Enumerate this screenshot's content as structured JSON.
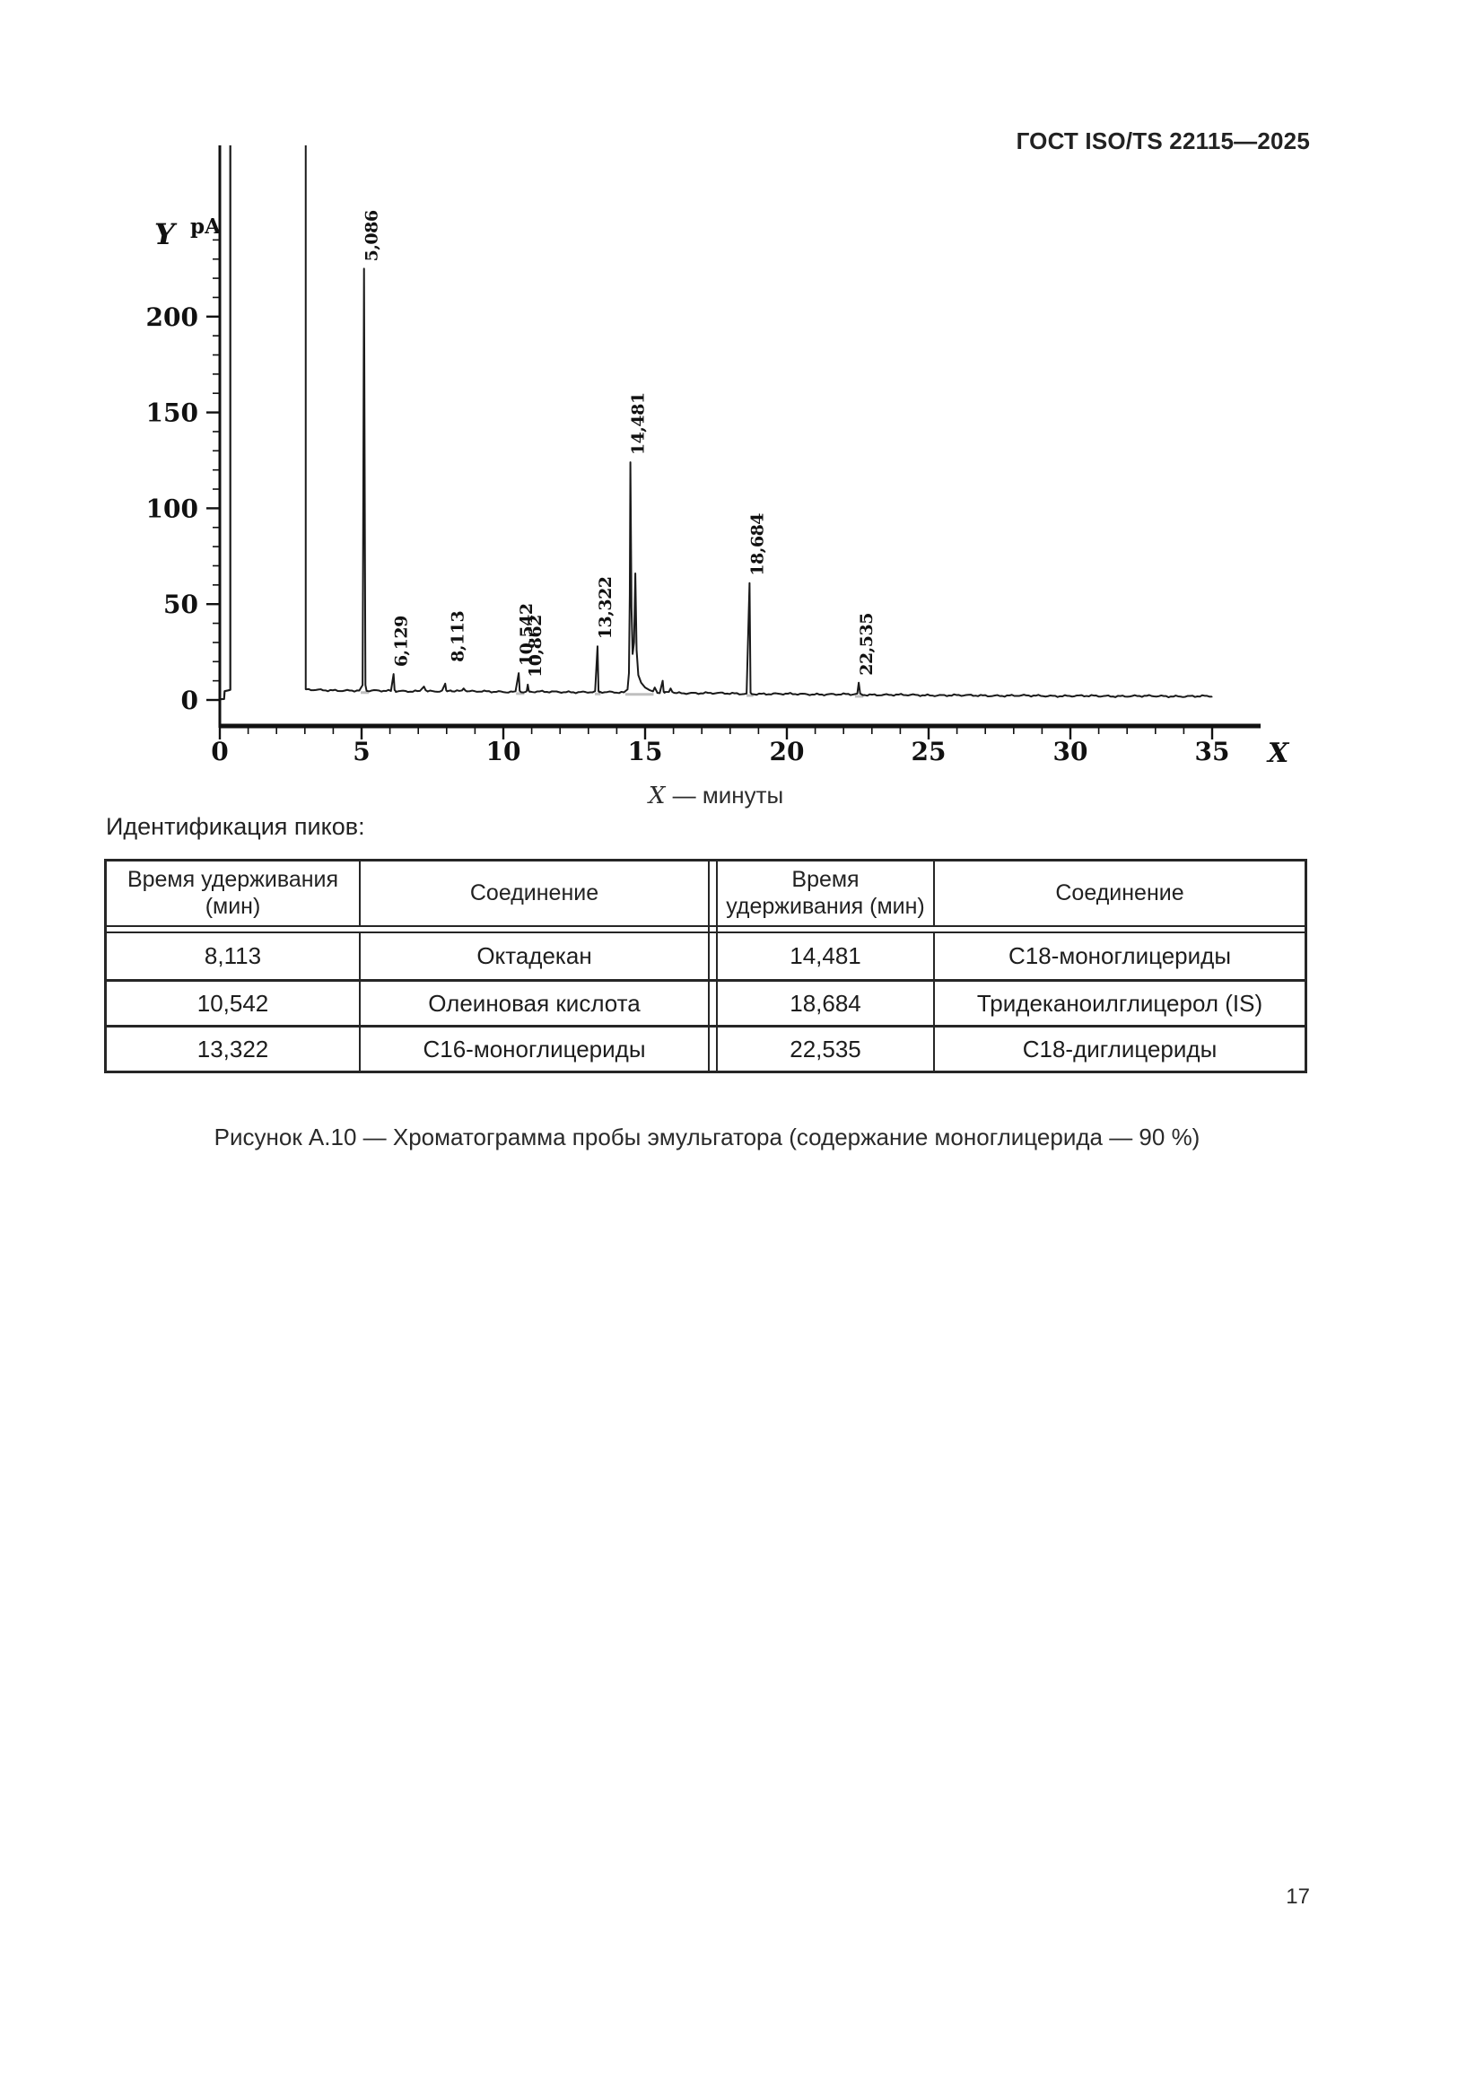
{
  "page": {
    "header_title": "ГОСТ ISO/TS 22115—2025",
    "page_number": "17"
  },
  "section": {
    "peaks_heading": "Идентификация пиков:"
  },
  "figure_caption": "Рисунок А.10 — Хроматограмма пробы эмульгатора (содержание моноглицерида — 90 %)",
  "peaks_table": {
    "headers": [
      "Время удерживания (мин)",
      "Соединение",
      "Время удерживания (мин)",
      "Соединение"
    ],
    "rows": [
      [
        "8,113",
        "Октадекан",
        "14,481",
        "С18-моноглицериды"
      ],
      [
        "10,542",
        "Олеиновая кислота",
        "18,684",
        "Тридеканоилглицерол (IS)"
      ],
      [
        "13,322",
        "С16-моноглицериды",
        "22,535",
        "С18-диглицериды"
      ]
    ]
  },
  "chart_data": {
    "type": "line",
    "title": "",
    "xlabel": "— минуты",
    "ylabel": "pA",
    "x_axis_letter": "X",
    "y_axis_letter": "Y",
    "y_axis_unit": "pA",
    "xlim": [
      0,
      35
    ],
    "ylim": [
      0,
      250
    ],
    "x_ticks": [
      0,
      5,
      10,
      15,
      20,
      25,
      30,
      35
    ],
    "y_ticks": [
      0,
      50,
      100,
      150,
      200
    ],
    "x_minor_step": 1,
    "y_minor_step": 10,
    "grid": false,
    "line_color": "#1a1a1a",
    "axis_color": "#111111",
    "integration_mark_color": "#bfbfbf",
    "baseline_pa": [
      [
        3.05,
        5.3
      ],
      [
        5,
        4.8
      ],
      [
        8,
        4.5
      ],
      [
        10,
        4.3
      ],
      [
        12,
        4.2
      ],
      [
        14,
        4.0
      ],
      [
        16,
        3.7
      ],
      [
        18,
        3.4
      ],
      [
        19,
        3.2
      ],
      [
        22,
        2.9
      ],
      [
        24,
        2.6
      ],
      [
        27,
        2.3
      ],
      [
        30,
        2.1
      ],
      [
        35,
        1.9
      ]
    ],
    "offscale_solvent_region": {
      "from_min": 0.37,
      "to_min": 3.03
    },
    "labeled_peaks": [
      {
        "label": "5,086",
        "t_min": 5.086,
        "apex_pa": 225
      },
      {
        "label": "6,129",
        "t_min": 6.129,
        "apex_pa": 13.5
      },
      {
        "label": "8,113",
        "t_min": 8.113,
        "apex_pa": 16
      },
      {
        "label": "10,542",
        "t_min": 10.542,
        "apex_pa": 14
      },
      {
        "label": "10,862",
        "t_min": 10.862,
        "apex_pa": 8
      },
      {
        "label": "13,322",
        "t_min": 13.322,
        "apex_pa": 28
      },
      {
        "label": "14,481",
        "t_min": 14.481,
        "apex_pa": 124
      },
      {
        "label": "18,684",
        "t_min": 18.684,
        "apex_pa": 61
      },
      {
        "label": "22,535",
        "t_min": 22.535,
        "apex_pa": 9
      }
    ],
    "minor_unlabeled_peaks": [
      {
        "t_min": 7.2,
        "apex_pa": 7
      },
      {
        "t_min": 7.95,
        "apex_pa": 8.5
      },
      {
        "t_min": 8.6,
        "apex_pa": 6
      },
      {
        "t_min": 14.655,
        "apex_pa": 66
      },
      {
        "t_min": 15.62,
        "apex_pa": 10
      },
      {
        "t_min": 15.9,
        "apex_pa": 6
      }
    ],
    "integration_marks_min": [
      [
        4.97,
        5.25
      ],
      [
        10.45,
        10.74
      ],
      [
        13.23,
        13.43
      ],
      [
        14.3,
        15.3
      ],
      [
        18.58,
        18.82
      ],
      [
        22.4,
        22.7
      ]
    ]
  }
}
